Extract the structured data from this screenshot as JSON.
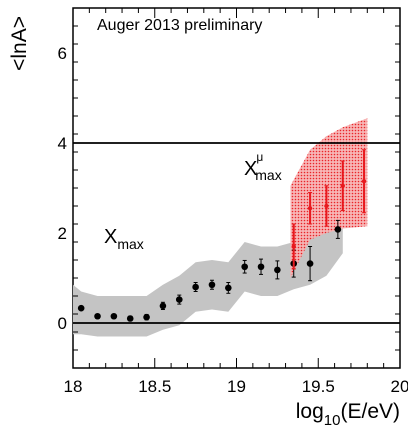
{
  "chart_data": {
    "type": "scatter",
    "title": "Auger 2013 preliminary",
    "xlabel": {
      "main": "log",
      "sub": "10",
      "rest": "(E/eV)"
    },
    "ylabel": "<lnA>",
    "xlim": [
      18,
      20
    ],
    "ylim": [
      -1,
      7
    ],
    "x_ticks": [
      18,
      18.5,
      19,
      19.5,
      20
    ],
    "x_tick_labels": [
      "18",
      "18.5",
      "19",
      "19.5",
      "20"
    ],
    "y_ticks": [
      0,
      2,
      4,
      6
    ],
    "y_tick_labels": [
      "0",
      "2",
      "4",
      "6"
    ],
    "reference_lines": [
      0,
      4
    ],
    "grid": false,
    "series": [
      {
        "name": "X",
        "name_sub": "max",
        "color": "#000000",
        "x": [
          18.05,
          18.15,
          18.25,
          18.35,
          18.45,
          18.55,
          18.65,
          18.75,
          18.85,
          18.95,
          19.05,
          19.15,
          19.25,
          19.35,
          19.45,
          19.62
        ],
        "y": [
          0.33,
          0.15,
          0.15,
          0.1,
          0.13,
          0.38,
          0.52,
          0.8,
          0.85,
          0.78,
          1.25,
          1.25,
          1.18,
          1.32,
          1.32,
          2.08
        ],
        "yerr": [
          0.04,
          0.04,
          0.04,
          0.05,
          0.06,
          0.08,
          0.1,
          0.1,
          0.1,
          0.12,
          0.14,
          0.17,
          0.2,
          0.3,
          0.38,
          0.2
        ],
        "band_x": [
          18.0,
          18.05,
          18.15,
          18.25,
          18.35,
          18.45,
          18.55,
          18.65,
          18.75,
          18.85,
          18.95,
          19.05,
          19.15,
          19.25,
          19.35,
          19.45,
          19.55,
          19.65
        ],
        "band_upper": [
          0.85,
          0.7,
          0.6,
          0.6,
          0.6,
          0.6,
          0.85,
          1.05,
          1.35,
          1.4,
          1.35,
          1.8,
          1.7,
          1.7,
          1.8,
          1.95,
          2.05,
          2.3
        ],
        "band_lower": [
          -0.25,
          -0.25,
          -0.3,
          -0.3,
          -0.3,
          -0.3,
          -0.15,
          -0.05,
          0.25,
          0.3,
          0.25,
          0.7,
          0.6,
          0.6,
          0.75,
          0.85,
          1.05,
          1.55
        ]
      },
      {
        "name": "X",
        "name_sup": "μ",
        "name_sub": "max",
        "color": "#e8191e",
        "x": [
          19.35,
          19.45,
          19.55,
          19.65,
          19.78
        ],
        "y": [
          1.7,
          2.55,
          2.6,
          3.05,
          3.15
        ],
        "yerr": [
          0.5,
          0.35,
          0.45,
          0.55,
          0.7
        ],
        "band_x": [
          19.33,
          19.45,
          19.55,
          19.65,
          19.8
        ],
        "band_upper": [
          3.05,
          3.85,
          4.15,
          4.35,
          4.55
        ],
        "band_lower": [
          1.0,
          1.85,
          2.0,
          2.1,
          2.15
        ]
      }
    ]
  }
}
